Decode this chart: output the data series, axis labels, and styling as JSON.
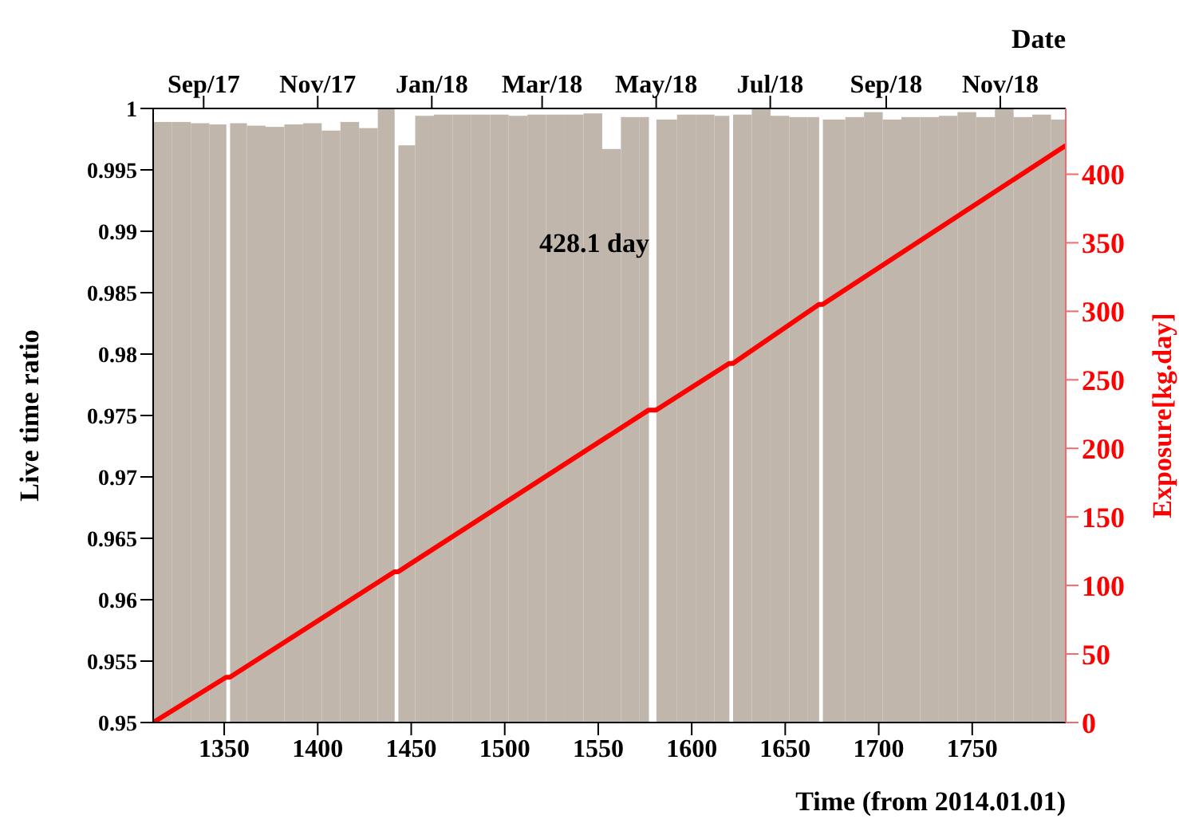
{
  "chart_data": {
    "type": "histogram",
    "xlabel": "Time (from 2014.01.01)",
    "ylabel": "Live time ratio",
    "y2label": "Exposure[kg.day]",
    "x2label": "Date",
    "bins": [
      1312,
      1322,
      1332,
      1342,
      1351,
      1353,
      1362,
      1372,
      1382,
      1392,
      1402,
      1412,
      1422,
      1432,
      1441,
      1443,
      1452,
      1462,
      1472,
      1482,
      1492,
      1502,
      1512,
      1522,
      1532,
      1542,
      1552,
      1562,
      1572,
      1577,
      1581,
      1592,
      1602,
      1612,
      1620,
      1622,
      1632,
      1642,
      1652,
      1662,
      1668,
      1670,
      1682,
      1692,
      1702,
      1712,
      1722,
      1732,
      1742,
      1752,
      1762,
      1772,
      1782,
      1792,
      1800
    ],
    "values": [
      0.9989,
      0.9989,
      0.9988,
      0.9987,
      null,
      0.9988,
      0.9986,
      0.9985,
      0.9987,
      0.9988,
      0.9982,
      0.9989,
      0.9984,
      1.0,
      null,
      0.997,
      0.9994,
      0.9995,
      0.9995,
      0.9995,
      0.9995,
      0.9994,
      0.9995,
      0.9995,
      0.9995,
      0.9996,
      0.9967,
      0.9993,
      0.9993,
      null,
      0.9991,
      0.9995,
      0.9995,
      0.9994,
      null,
      0.9995,
      1.0,
      0.9994,
      0.9993,
      0.9993,
      null,
      0.9991,
      0.9993,
      0.9997,
      0.9991,
      0.9993,
      0.9993,
      0.9994,
      0.9997,
      0.9993,
      1.0,
      0.9993,
      0.9995,
      0.9991
    ],
    "color": "#c0b6ab",
    "series": [
      {
        "type": "line",
        "axis": "y2",
        "color": "#ff0000",
        "x": [
          1312,
          1351,
          1353,
          1441,
          1443,
          1577,
          1581,
          1620,
          1622,
          1668,
          1670,
          1800
        ],
        "values": [
          0,
          33,
          33,
          110,
          110,
          228,
          228,
          262,
          262,
          305,
          305,
          421
        ]
      }
    ],
    "xlim": [
      1312,
      1800
    ],
    "xticks": [
      1350,
      1400,
      1450,
      1500,
      1550,
      1600,
      1650,
      1700,
      1750
    ],
    "x2lim": [
      "2017-08-05",
      "2018-12-06"
    ],
    "x2ticks": [
      {
        "value": "2017-09-01",
        "label": "Sep/17"
      },
      {
        "value": "2017-11-01",
        "label": "Nov/17"
      },
      {
        "value": "2018-01-01",
        "label": "Jan/18"
      },
      {
        "value": "2018-03-01",
        "label": "Mar/18"
      },
      {
        "value": "2018-05-01",
        "label": "May/18"
      },
      {
        "value": "2018-07-01",
        "label": "Jul/18"
      },
      {
        "value": "2018-09-01",
        "label": "Sep/18"
      },
      {
        "value": "2018-11-01",
        "label": "Nov/18"
      }
    ],
    "ylim": [
      0.95,
      1
    ],
    "yticks": [
      0.95,
      0.955,
      0.96,
      0.965,
      0.97,
      0.975,
      0.98,
      0.985,
      0.99,
      0.995,
      1
    ],
    "y2lim": [
      0,
      448
    ],
    "y2ticks": [
      0,
      50,
      100,
      150,
      200,
      250,
      300,
      350,
      400
    ],
    "annotations": [
      "428.1 day"
    ],
    "grid": false,
    "legend": false
  }
}
